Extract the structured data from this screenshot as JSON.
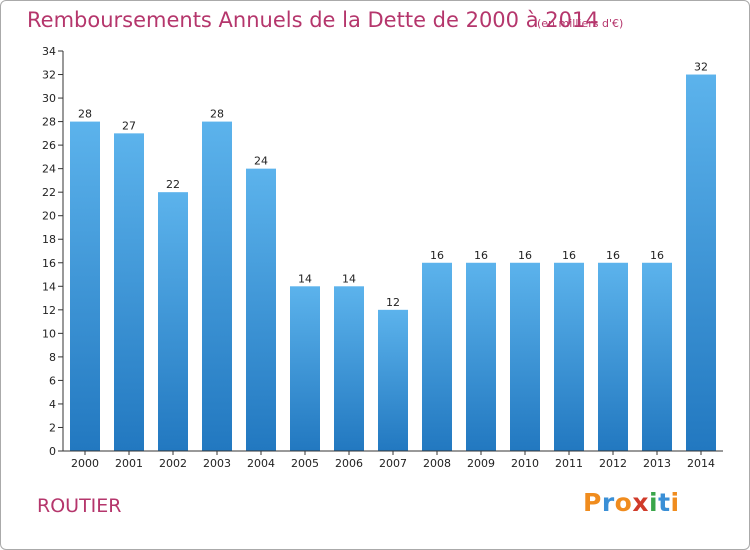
{
  "title": "Remboursements Annuels de la Dette de 2000 à 2014",
  "subtitle": "(en milliers d'€)",
  "commune": "ROUTIER",
  "logo": {
    "text": "Proxiti",
    "letter_colors": [
      "#f08c1e",
      "#3a8fd6",
      "#f08c1e",
      "#d03b2a",
      "#3aa64a",
      "#3a8fd6",
      "#f08c1e"
    ]
  },
  "colors": {
    "accent": "#b5366c",
    "bar": "#3c96dc",
    "bar_light": "#5cb3ec",
    "bar_dark": "#2278c0"
  },
  "chart_data": {
    "type": "bar",
    "categories": [
      "2000",
      "2001",
      "2002",
      "2003",
      "2004",
      "2005",
      "2006",
      "2007",
      "2008",
      "2009",
      "2010",
      "2011",
      "2012",
      "2013",
      "2014"
    ],
    "values": [
      28,
      27,
      22,
      28,
      24,
      14,
      14,
      12,
      16,
      16,
      16,
      16,
      16,
      16,
      32
    ],
    "ylim": [
      0,
      34
    ],
    "ytick_step": 2,
    "xlabel": "",
    "ylabel": "",
    "grid": false,
    "data_labels": true
  }
}
